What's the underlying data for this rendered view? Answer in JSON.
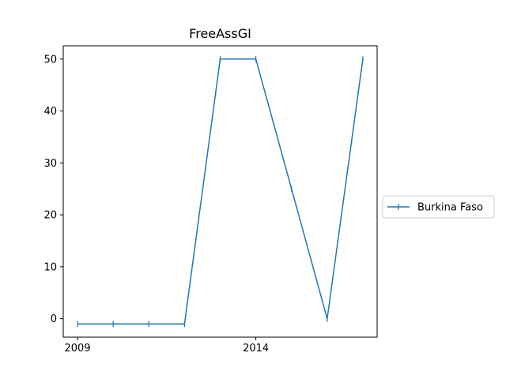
{
  "chart_data": {
    "type": "line",
    "title": "FreeAssGI",
    "xlabel": "",
    "ylabel": "",
    "x": [
      2009,
      2010,
      2011,
      2012,
      2013,
      2014,
      2015,
      2016,
      2017
    ],
    "series": [
      {
        "name": "Burkina Faso",
        "color": "#1f77b4",
        "marker": "vertical-tick",
        "values": [
          -1,
          -1,
          -1,
          -1,
          50,
          50,
          25,
          0,
          50
        ]
      }
    ],
    "xticks": [
      2009,
      2014
    ],
    "xtick_labels": [
      "2009",
      "2014"
    ],
    "yticks": [
      0,
      10,
      20,
      30,
      40,
      50
    ],
    "ytick_labels": [
      "0",
      "10",
      "20",
      "30",
      "40",
      "50"
    ],
    "xlim": [
      2008.6,
      2017.4
    ],
    "ylim": [
      -3.55,
      52.55
    ],
    "grid": false,
    "legend_position": "right-outside"
  }
}
